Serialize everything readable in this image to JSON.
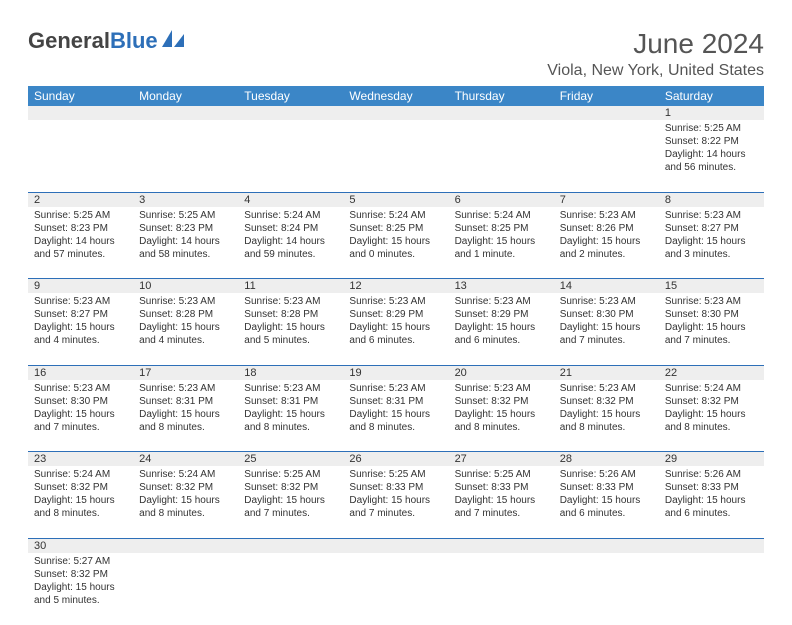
{
  "logo": {
    "general": "General",
    "blue": "Blue"
  },
  "header": {
    "month_title": "June 2024",
    "location": "Viola, New York, United States"
  },
  "colors": {
    "header_bg": "#3b86c7",
    "header_text": "#ffffff",
    "daynum_bg": "#eeeeee",
    "border": "#2d6fb8",
    "logo_blue": "#2d6fb8",
    "logo_gray": "#444444",
    "body_text": "#333333",
    "title_text": "#555555"
  },
  "day_headers": [
    "Sunday",
    "Monday",
    "Tuesday",
    "Wednesday",
    "Thursday",
    "Friday",
    "Saturday"
  ],
  "weeks": [
    {
      "nums": [
        "",
        "",
        "",
        "",
        "",
        "",
        "1"
      ],
      "cells": [
        null,
        null,
        null,
        null,
        null,
        null,
        {
          "sunrise": "Sunrise: 5:25 AM",
          "sunset": "Sunset: 8:22 PM",
          "d1": "Daylight: 14 hours",
          "d2": "and 56 minutes."
        }
      ]
    },
    {
      "nums": [
        "2",
        "3",
        "4",
        "5",
        "6",
        "7",
        "8"
      ],
      "cells": [
        {
          "sunrise": "Sunrise: 5:25 AM",
          "sunset": "Sunset: 8:23 PM",
          "d1": "Daylight: 14 hours",
          "d2": "and 57 minutes."
        },
        {
          "sunrise": "Sunrise: 5:25 AM",
          "sunset": "Sunset: 8:23 PM",
          "d1": "Daylight: 14 hours",
          "d2": "and 58 minutes."
        },
        {
          "sunrise": "Sunrise: 5:24 AM",
          "sunset": "Sunset: 8:24 PM",
          "d1": "Daylight: 14 hours",
          "d2": "and 59 minutes."
        },
        {
          "sunrise": "Sunrise: 5:24 AM",
          "sunset": "Sunset: 8:25 PM",
          "d1": "Daylight: 15 hours",
          "d2": "and 0 minutes."
        },
        {
          "sunrise": "Sunrise: 5:24 AM",
          "sunset": "Sunset: 8:25 PM",
          "d1": "Daylight: 15 hours",
          "d2": "and 1 minute."
        },
        {
          "sunrise": "Sunrise: 5:23 AM",
          "sunset": "Sunset: 8:26 PM",
          "d1": "Daylight: 15 hours",
          "d2": "and 2 minutes."
        },
        {
          "sunrise": "Sunrise: 5:23 AM",
          "sunset": "Sunset: 8:27 PM",
          "d1": "Daylight: 15 hours",
          "d2": "and 3 minutes."
        }
      ]
    },
    {
      "nums": [
        "9",
        "10",
        "11",
        "12",
        "13",
        "14",
        "15"
      ],
      "cells": [
        {
          "sunrise": "Sunrise: 5:23 AM",
          "sunset": "Sunset: 8:27 PM",
          "d1": "Daylight: 15 hours",
          "d2": "and 4 minutes."
        },
        {
          "sunrise": "Sunrise: 5:23 AM",
          "sunset": "Sunset: 8:28 PM",
          "d1": "Daylight: 15 hours",
          "d2": "and 4 minutes."
        },
        {
          "sunrise": "Sunrise: 5:23 AM",
          "sunset": "Sunset: 8:28 PM",
          "d1": "Daylight: 15 hours",
          "d2": "and 5 minutes."
        },
        {
          "sunrise": "Sunrise: 5:23 AM",
          "sunset": "Sunset: 8:29 PM",
          "d1": "Daylight: 15 hours",
          "d2": "and 6 minutes."
        },
        {
          "sunrise": "Sunrise: 5:23 AM",
          "sunset": "Sunset: 8:29 PM",
          "d1": "Daylight: 15 hours",
          "d2": "and 6 minutes."
        },
        {
          "sunrise": "Sunrise: 5:23 AM",
          "sunset": "Sunset: 8:30 PM",
          "d1": "Daylight: 15 hours",
          "d2": "and 7 minutes."
        },
        {
          "sunrise": "Sunrise: 5:23 AM",
          "sunset": "Sunset: 8:30 PM",
          "d1": "Daylight: 15 hours",
          "d2": "and 7 minutes."
        }
      ]
    },
    {
      "nums": [
        "16",
        "17",
        "18",
        "19",
        "20",
        "21",
        "22"
      ],
      "cells": [
        {
          "sunrise": "Sunrise: 5:23 AM",
          "sunset": "Sunset: 8:30 PM",
          "d1": "Daylight: 15 hours",
          "d2": "and 7 minutes."
        },
        {
          "sunrise": "Sunrise: 5:23 AM",
          "sunset": "Sunset: 8:31 PM",
          "d1": "Daylight: 15 hours",
          "d2": "and 8 minutes."
        },
        {
          "sunrise": "Sunrise: 5:23 AM",
          "sunset": "Sunset: 8:31 PM",
          "d1": "Daylight: 15 hours",
          "d2": "and 8 minutes."
        },
        {
          "sunrise": "Sunrise: 5:23 AM",
          "sunset": "Sunset: 8:31 PM",
          "d1": "Daylight: 15 hours",
          "d2": "and 8 minutes."
        },
        {
          "sunrise": "Sunrise: 5:23 AM",
          "sunset": "Sunset: 8:32 PM",
          "d1": "Daylight: 15 hours",
          "d2": "and 8 minutes."
        },
        {
          "sunrise": "Sunrise: 5:23 AM",
          "sunset": "Sunset: 8:32 PM",
          "d1": "Daylight: 15 hours",
          "d2": "and 8 minutes."
        },
        {
          "sunrise": "Sunrise: 5:24 AM",
          "sunset": "Sunset: 8:32 PM",
          "d1": "Daylight: 15 hours",
          "d2": "and 8 minutes."
        }
      ]
    },
    {
      "nums": [
        "23",
        "24",
        "25",
        "26",
        "27",
        "28",
        "29"
      ],
      "cells": [
        {
          "sunrise": "Sunrise: 5:24 AM",
          "sunset": "Sunset: 8:32 PM",
          "d1": "Daylight: 15 hours",
          "d2": "and 8 minutes."
        },
        {
          "sunrise": "Sunrise: 5:24 AM",
          "sunset": "Sunset: 8:32 PM",
          "d1": "Daylight: 15 hours",
          "d2": "and 8 minutes."
        },
        {
          "sunrise": "Sunrise: 5:25 AM",
          "sunset": "Sunset: 8:32 PM",
          "d1": "Daylight: 15 hours",
          "d2": "and 7 minutes."
        },
        {
          "sunrise": "Sunrise: 5:25 AM",
          "sunset": "Sunset: 8:33 PM",
          "d1": "Daylight: 15 hours",
          "d2": "and 7 minutes."
        },
        {
          "sunrise": "Sunrise: 5:25 AM",
          "sunset": "Sunset: 8:33 PM",
          "d1": "Daylight: 15 hours",
          "d2": "and 7 minutes."
        },
        {
          "sunrise": "Sunrise: 5:26 AM",
          "sunset": "Sunset: 8:33 PM",
          "d1": "Daylight: 15 hours",
          "d2": "and 6 minutes."
        },
        {
          "sunrise": "Sunrise: 5:26 AM",
          "sunset": "Sunset: 8:33 PM",
          "d1": "Daylight: 15 hours",
          "d2": "and 6 minutes."
        }
      ]
    },
    {
      "nums": [
        "30",
        "",
        "",
        "",
        "",
        "",
        ""
      ],
      "cells": [
        {
          "sunrise": "Sunrise: 5:27 AM",
          "sunset": "Sunset: 8:32 PM",
          "d1": "Daylight: 15 hours",
          "d2": "and 5 minutes."
        },
        null,
        null,
        null,
        null,
        null,
        null
      ]
    }
  ]
}
